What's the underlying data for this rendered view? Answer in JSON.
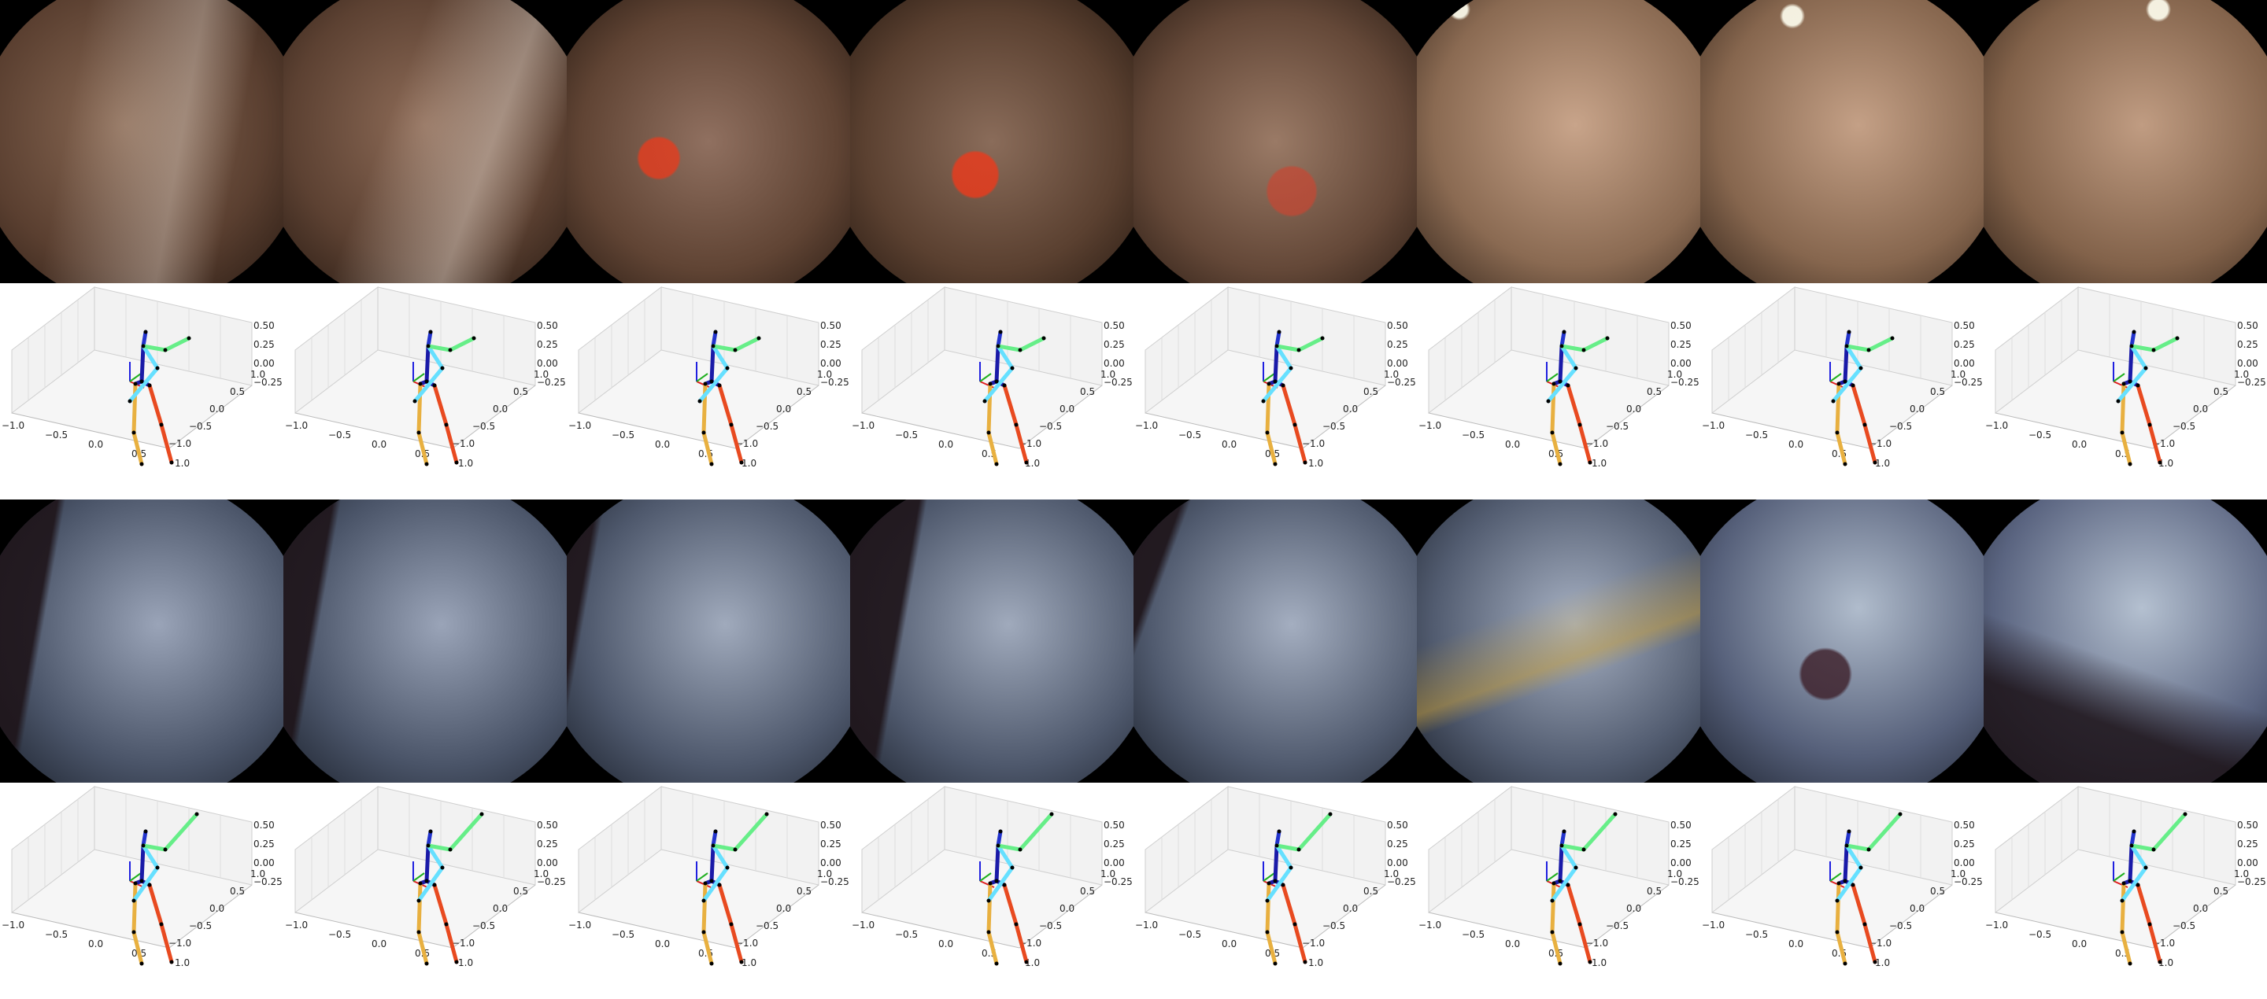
{
  "figure": {
    "rows": [
      {
        "kind": "egocentric-frames",
        "scene": "warm",
        "count": 8
      },
      {
        "kind": "pose-plots",
        "count": 8
      },
      {
        "kind": "egocentric-frames",
        "scene": "cool",
        "count": 8
      },
      {
        "kind": "pose-plots",
        "count": 8
      }
    ]
  },
  "axis_ticks": {
    "z": [
      "0.50",
      "0.25",
      "0.00",
      "−0.25"
    ],
    "x": [
      "−1.0",
      "−0.5",
      "0.0",
      "0.5",
      "1.0"
    ],
    "y": [
      "1.0",
      "0.5",
      "0.0",
      "−0.5",
      "−1.0"
    ]
  },
  "skeleton_colors": {
    "spine": "#1a1aa8",
    "neck": "#2233cc",
    "right_arm": "#66e0ff",
    "left_arm": "#66ee88",
    "right_leg": "#e8b040",
    "left_leg": "#e84a20",
    "joint": "#000000",
    "axis_red": "#e02020",
    "axis_green": "#20b020",
    "axis_blue": "#2020e0"
  }
}
